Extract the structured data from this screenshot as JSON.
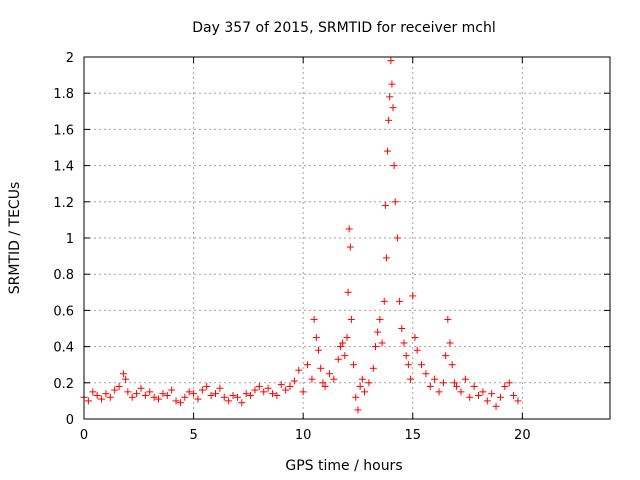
{
  "chart_data": {
    "type": "scatter",
    "title": "Day 357 of 2015, SRMTID for receiver mchl",
    "xlabel": "GPS time / hours",
    "ylabel": "SRMTID / TECUs",
    "xlim": [
      0,
      24
    ],
    "ylim": [
      0,
      2
    ],
    "xticks": [
      0,
      5,
      10,
      15,
      20
    ],
    "yticks": [
      0,
      0.2,
      0.4,
      0.6,
      0.8,
      1,
      1.2,
      1.4,
      1.6,
      1.8,
      2
    ],
    "grid": true,
    "marker": "+",
    "colors": {
      "points": "#ff0000",
      "axes": "#000000",
      "grid": "#a0a0a0"
    },
    "series": [
      {
        "name": "SRMTID",
        "x": [
          0.0,
          0.2,
          0.4,
          0.6,
          0.8,
          1.0,
          1.2,
          1.4,
          1.6,
          1.8,
          1.9,
          2.0,
          2.2,
          2.4,
          2.6,
          2.8,
          3.0,
          3.2,
          3.4,
          3.6,
          3.8,
          4.0,
          4.2,
          4.4,
          4.6,
          4.8,
          5.0,
          5.2,
          5.4,
          5.6,
          5.8,
          6.0,
          6.2,
          6.4,
          6.6,
          6.8,
          7.0,
          7.2,
          7.4,
          7.6,
          7.8,
          8.0,
          8.2,
          8.4,
          8.6,
          8.8,
          9.0,
          9.2,
          9.4,
          9.6,
          9.8,
          10.0,
          10.2,
          10.4,
          10.5,
          10.6,
          10.7,
          10.8,
          10.9,
          11.0,
          11.2,
          11.4,
          11.6,
          11.7,
          11.8,
          11.9,
          12.0,
          12.05,
          12.1,
          12.15,
          12.2,
          12.3,
          12.4,
          12.5,
          12.6,
          12.7,
          12.8,
          13.0,
          13.2,
          13.3,
          13.4,
          13.5,
          13.6,
          13.7,
          13.75,
          13.8,
          13.85,
          13.9,
          13.95,
          14.0,
          14.05,
          14.1,
          14.15,
          14.2,
          14.3,
          14.4,
          14.5,
          14.6,
          14.7,
          14.8,
          14.9,
          15.0,
          15.1,
          15.2,
          15.4,
          15.6,
          15.8,
          16.0,
          16.2,
          16.4,
          16.5,
          16.6,
          16.7,
          16.8,
          16.9,
          17.0,
          17.2,
          17.4,
          17.6,
          17.8,
          18.0,
          18.2,
          18.4,
          18.6,
          18.8,
          19.0,
          19.2,
          19.4,
          19.6,
          19.8
        ],
        "y": [
          0.12,
          0.1,
          0.15,
          0.13,
          0.11,
          0.14,
          0.12,
          0.16,
          0.18,
          0.25,
          0.22,
          0.15,
          0.12,
          0.14,
          0.17,
          0.13,
          0.15,
          0.12,
          0.11,
          0.14,
          0.13,
          0.16,
          0.1,
          0.09,
          0.12,
          0.15,
          0.14,
          0.11,
          0.16,
          0.18,
          0.13,
          0.14,
          0.17,
          0.12,
          0.1,
          0.13,
          0.12,
          0.09,
          0.14,
          0.13,
          0.16,
          0.18,
          0.15,
          0.17,
          0.14,
          0.13,
          0.19,
          0.16,
          0.18,
          0.21,
          0.27,
          0.15,
          0.3,
          0.22,
          0.55,
          0.45,
          0.38,
          0.28,
          0.2,
          0.18,
          0.25,
          0.22,
          0.33,
          0.4,
          0.42,
          0.35,
          0.45,
          0.7,
          1.05,
          0.95,
          0.55,
          0.3,
          0.12,
          0.05,
          0.18,
          0.22,
          0.15,
          0.2,
          0.28,
          0.4,
          0.48,
          0.55,
          0.42,
          0.65,
          1.18,
          0.89,
          1.48,
          1.65,
          1.78,
          1.98,
          1.85,
          1.72,
          1.4,
          1.2,
          1.0,
          0.65,
          0.5,
          0.42,
          0.35,
          0.3,
          0.22,
          0.68,
          0.45,
          0.38,
          0.3,
          0.25,
          0.18,
          0.22,
          0.15,
          0.2,
          0.35,
          0.55,
          0.42,
          0.3,
          0.2,
          0.18,
          0.15,
          0.22,
          0.12,
          0.18,
          0.13,
          0.15,
          0.1,
          0.14,
          0.07,
          0.12,
          0.18,
          0.2,
          0.13,
          0.1
        ]
      }
    ]
  }
}
